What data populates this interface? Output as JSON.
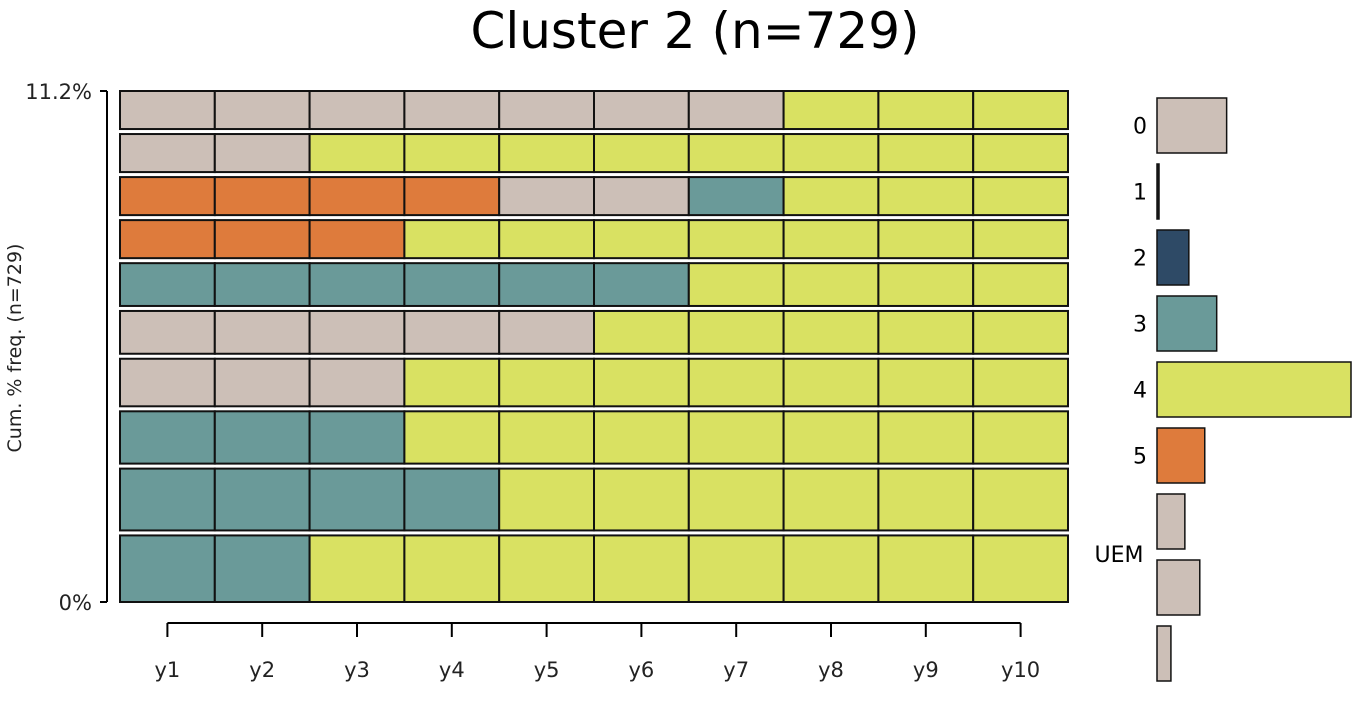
{
  "chart_data": {
    "type": "sequence-index-plot",
    "title": "Cluster 2 (n=729)",
    "ylabel": "Cum. % freq. (n=729)",
    "y_ticks": [
      "11.2%",
      "0%"
    ],
    "x_categories": [
      "y1",
      "y2",
      "y3",
      "y4",
      "y5",
      "y6",
      "y7",
      "y8",
      "y9",
      "y10"
    ],
    "state_colors": {
      "0": "#ccbfb7",
      "1": "#1b1b1b",
      "2": "#2e4a66",
      "3": "#6a9a99",
      "4": "#d9e162",
      "5": "#de7b3c",
      "UEM": "#ccbfb7"
    },
    "sequences_top_to_bottom": [
      {
        "freq_pct": 0.8,
        "states": [
          "0",
          "0",
          "0",
          "0",
          "0",
          "0",
          "0",
          "4",
          "4",
          "4"
        ]
      },
      {
        "freq_pct": 0.8,
        "states": [
          "0",
          "0",
          "4",
          "4",
          "4",
          "4",
          "4",
          "4",
          "4",
          "4"
        ]
      },
      {
        "freq_pct": 0.8,
        "states": [
          "5",
          "5",
          "5",
          "5",
          "0",
          "0",
          "3",
          "4",
          "4",
          "4"
        ]
      },
      {
        "freq_pct": 0.8,
        "states": [
          "5",
          "5",
          "5",
          "4",
          "4",
          "4",
          "4",
          "4",
          "4",
          "4"
        ]
      },
      {
        "freq_pct": 0.9,
        "states": [
          "3",
          "3",
          "3",
          "3",
          "3",
          "3",
          "4",
          "4",
          "4",
          "4"
        ]
      },
      {
        "freq_pct": 0.9,
        "states": [
          "0",
          "0",
          "0",
          "0",
          "0",
          "4",
          "4",
          "4",
          "4",
          "4"
        ]
      },
      {
        "freq_pct": 1.0,
        "states": [
          "0",
          "0",
          "0",
          "4",
          "4",
          "4",
          "4",
          "4",
          "4",
          "4"
        ]
      },
      {
        "freq_pct": 1.1,
        "states": [
          "3",
          "3",
          "3",
          "4",
          "4",
          "4",
          "4",
          "4",
          "4",
          "4"
        ]
      },
      {
        "freq_pct": 1.3,
        "states": [
          "3",
          "3",
          "3",
          "3",
          "4",
          "4",
          "4",
          "4",
          "4",
          "4"
        ]
      },
      {
        "freq_pct": 1.4,
        "states": [
          "3",
          "3",
          "4",
          "4",
          "4",
          "4",
          "4",
          "4",
          "4",
          "4"
        ]
      }
    ],
    "state_distribution": [
      {
        "label": "0",
        "value": 7.0
      },
      {
        "label": "1",
        "value": 0.1
      },
      {
        "label": "2",
        "value": 3.2
      },
      {
        "label": "3",
        "value": 6.0
      },
      {
        "label": "4",
        "value": 19.5
      },
      {
        "label": "5",
        "value": 4.8
      },
      {
        "label": "",
        "value": 2.8
      },
      {
        "label": "UEM",
        "value": 4.3
      },
      {
        "label": "",
        "value": 1.4
      }
    ]
  }
}
